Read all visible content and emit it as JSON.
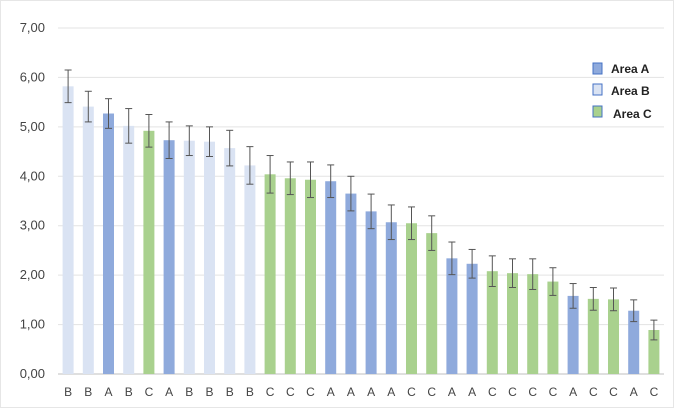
{
  "chart_data": {
    "type": "bar",
    "ylim": [
      0,
      7
    ],
    "yticks": [
      "0,00",
      "1,00",
      "2,00",
      "3,00",
      "4,00",
      "5,00",
      "6,00",
      "7,00"
    ],
    "grid": true,
    "legend_position": "right",
    "categories": [
      "B",
      "B",
      "A",
      "B",
      "C",
      "A",
      "B",
      "B",
      "B",
      "B",
      "C",
      "C",
      "C",
      "A",
      "A",
      "A",
      "A",
      "C",
      "C",
      "A",
      "A",
      "C",
      "C",
      "C",
      "C",
      "A",
      "C",
      "C",
      "A",
      "C"
    ],
    "values": [
      5.82,
      5.41,
      5.27,
      5.02,
      4.92,
      4.73,
      4.72,
      4.7,
      4.57,
      4.22,
      4.04,
      3.96,
      3.93,
      3.9,
      3.65,
      3.29,
      3.07,
      3.05,
      2.85,
      2.34,
      2.23,
      2.08,
      2.04,
      2.02,
      1.87,
      1.58,
      1.52,
      1.51,
      1.28,
      0.89
    ],
    "errors": [
      0.33,
      0.31,
      0.3,
      0.35,
      0.33,
      0.37,
      0.3,
      0.3,
      0.36,
      0.38,
      0.38,
      0.33,
      0.36,
      0.33,
      0.35,
      0.35,
      0.35,
      0.33,
      0.35,
      0.33,
      0.29,
      0.31,
      0.29,
      0.31,
      0.28,
      0.25,
      0.23,
      0.23,
      0.22,
      0.2
    ],
    "series": [
      {
        "name": "Area A",
        "color": "#8faadc",
        "border": "#4472c4"
      },
      {
        "name": "Area B",
        "color": "#dae3f3",
        "border": "#8faadc"
      },
      {
        "name": "Area C",
        "color": "#a9d18e",
        "border": "#70ad47"
      }
    ]
  }
}
